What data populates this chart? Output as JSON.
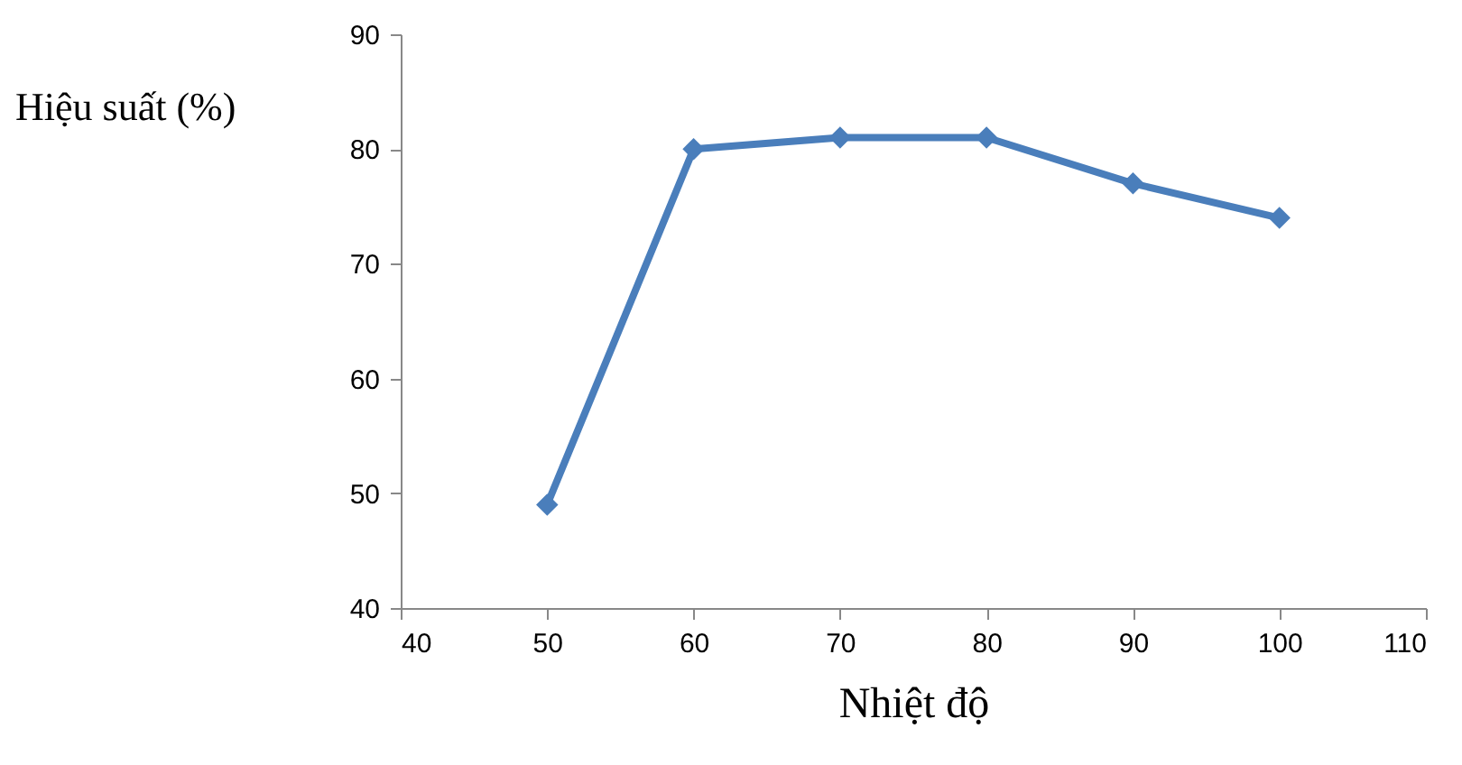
{
  "chart_data": {
    "type": "line",
    "xlabel": "Nhiệt độ",
    "ylabel": "Hiệu suất (%)",
    "x": [
      50,
      60,
      70,
      80,
      90,
      100
    ],
    "series": [
      {
        "color": "#4a7ebb",
        "values": [
          49,
          80,
          81,
          81,
          77,
          74
        ]
      }
    ],
    "xlim": [
      40,
      110
    ],
    "xticks": [
      40,
      50,
      60,
      70,
      80,
      90,
      100,
      110
    ],
    "ylim": [
      40,
      90
    ],
    "yticks": [
      40,
      50,
      60,
      70,
      80,
      90
    ],
    "grid": false,
    "marker": "diamond",
    "line_style": "solid"
  }
}
